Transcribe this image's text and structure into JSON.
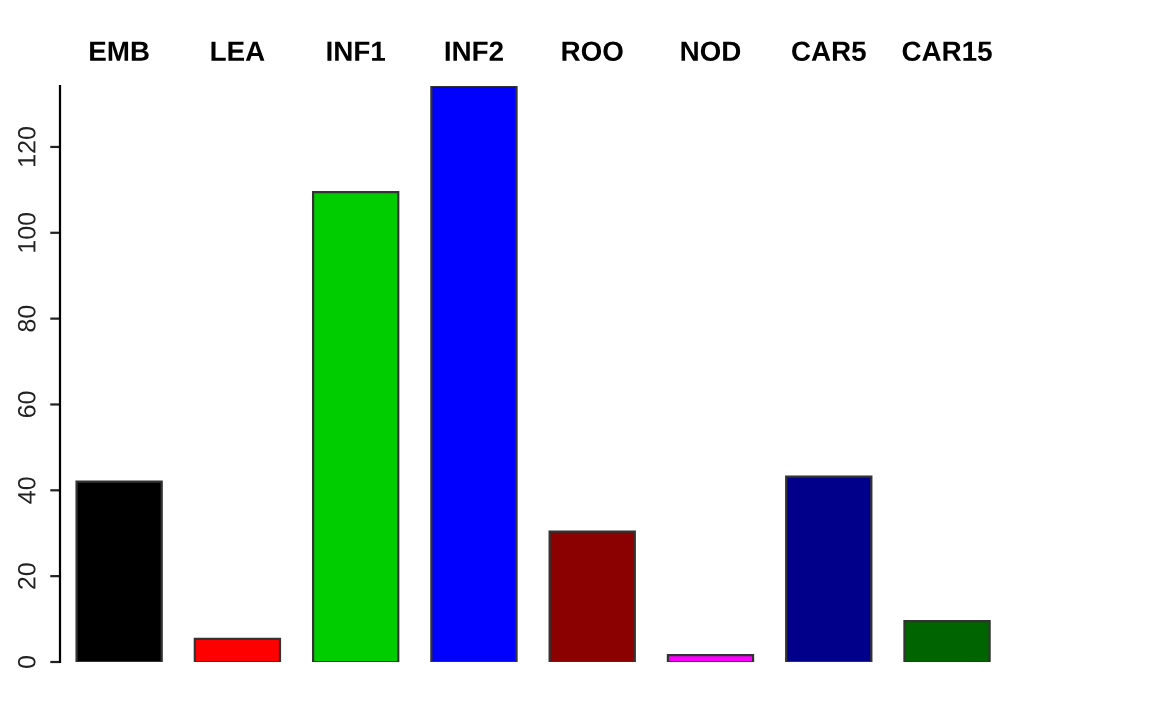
{
  "chart_data": {
    "type": "bar",
    "categories": [
      "EMB",
      "LEA",
      "INF1",
      "INF2",
      "ROO",
      "NOD",
      "CAR5",
      "CAR15"
    ],
    "values": [
      42,
      5.4,
      109.5,
      134.2,
      30.4,
      1.6,
      43.2,
      9.5
    ],
    "colors": [
      "#000000",
      "#ff0000",
      "#00cd00",
      "#0000ff",
      "#8b0000",
      "#ff00ff",
      "#00008b",
      "#006400"
    ],
    "ylim": [
      0,
      134.2
    ],
    "yticks": [
      0,
      20,
      40,
      60,
      80,
      100,
      120
    ],
    "grid": false
  }
}
